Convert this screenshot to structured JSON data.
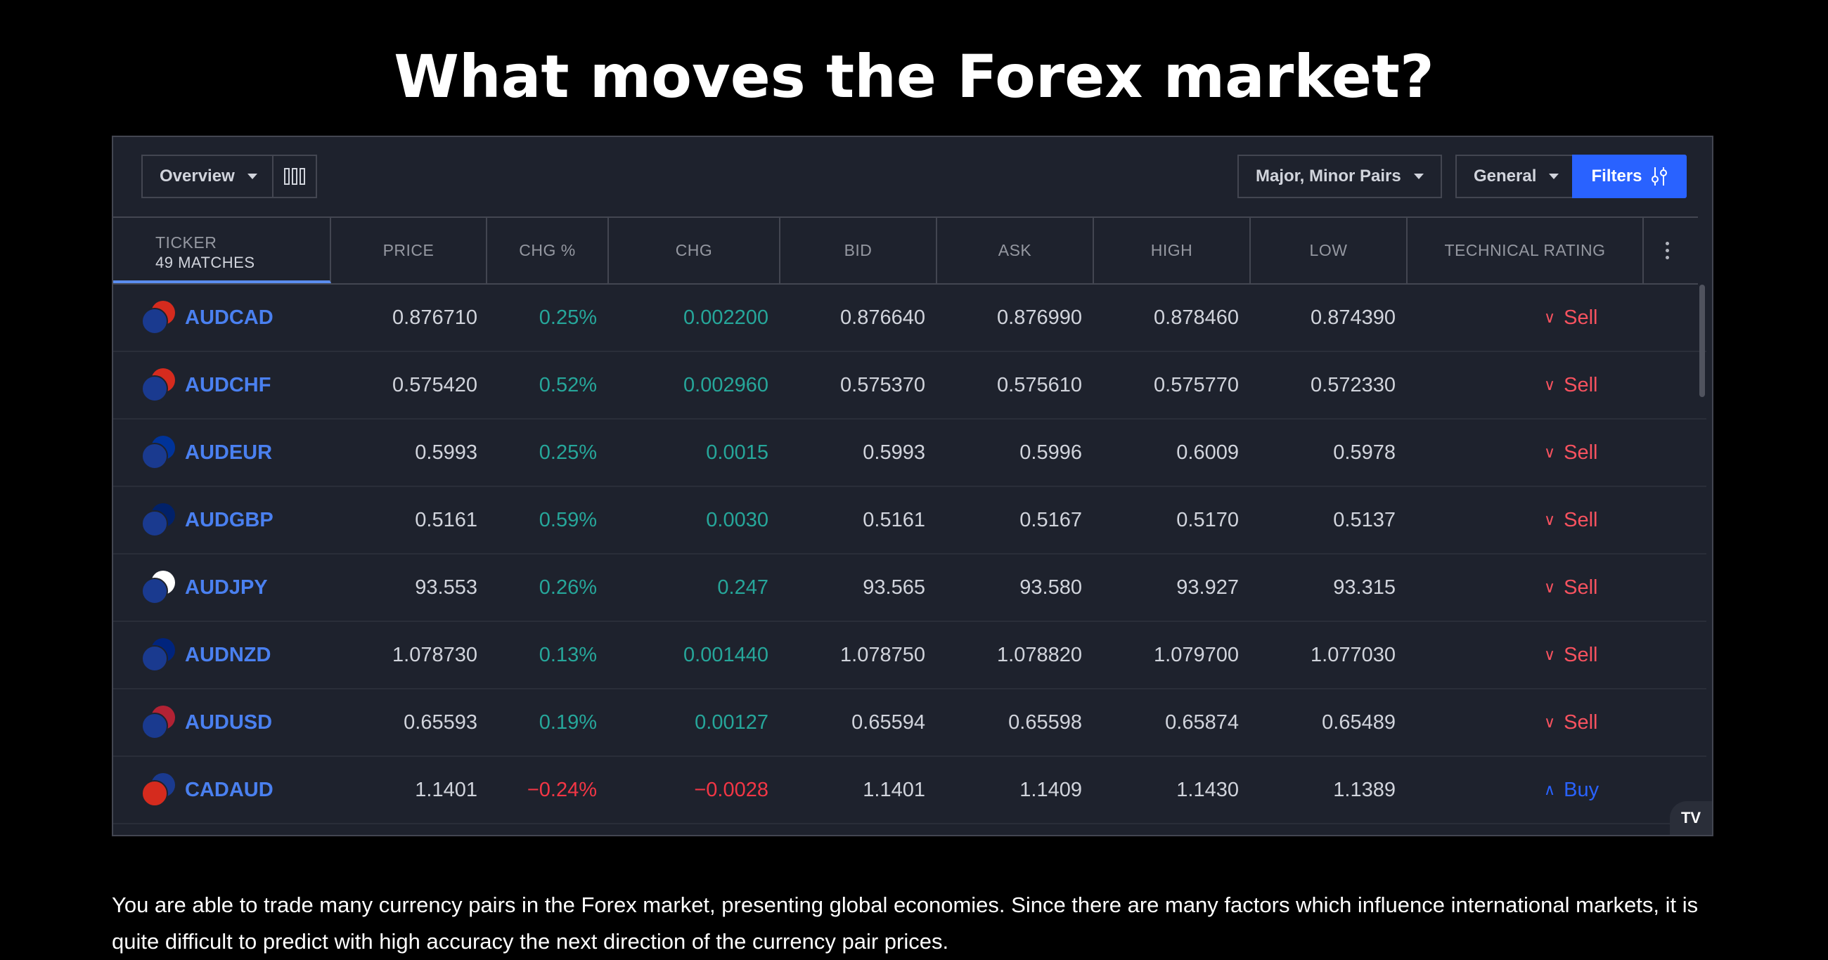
{
  "heading": "What moves the Forex market?",
  "toolbar": {
    "view_label": "Overview",
    "pairs_label": "Major, Minor Pairs",
    "general_label": "General",
    "filters_label": "Filters"
  },
  "columns": {
    "ticker": "TICKER",
    "matches": "49 MATCHES",
    "price": "PRICE",
    "chg_pct": "CHG %",
    "chg": "CHG",
    "bid": "BID",
    "ask": "ASK",
    "high": "HIGH",
    "low": "LOW",
    "rating": "TECHNICAL RATING"
  },
  "rows": [
    {
      "symbol": "AUDCAD",
      "price": "0.876710",
      "chg_pct": "0.25%",
      "chg": "0.002200",
      "bid": "0.876640",
      "ask": "0.876990",
      "high": "0.878460",
      "low": "0.874390",
      "rating": "Sell",
      "dir": "pos",
      "rating_dir": "sell",
      "flag1": "#1a3a8f",
      "flag2": "#d52b1e"
    },
    {
      "symbol": "AUDCHF",
      "price": "0.575420",
      "chg_pct": "0.52%",
      "chg": "0.002960",
      "bid": "0.575370",
      "ask": "0.575610",
      "high": "0.575770",
      "low": "0.572330",
      "rating": "Sell",
      "dir": "pos",
      "rating_dir": "sell",
      "flag1": "#1a3a8f",
      "flag2": "#d52b1e"
    },
    {
      "symbol": "AUDEUR",
      "price": "0.5993",
      "chg_pct": "0.25%",
      "chg": "0.0015",
      "bid": "0.5993",
      "ask": "0.5996",
      "high": "0.6009",
      "low": "0.5978",
      "rating": "Sell",
      "dir": "pos",
      "rating_dir": "sell",
      "flag1": "#1a3a8f",
      "flag2": "#003399"
    },
    {
      "symbol": "AUDGBP",
      "price": "0.5161",
      "chg_pct": "0.59%",
      "chg": "0.0030",
      "bid": "0.5161",
      "ask": "0.5167",
      "high": "0.5170",
      "low": "0.5137",
      "rating": "Sell",
      "dir": "pos",
      "rating_dir": "sell",
      "flag1": "#1a3a8f",
      "flag2": "#012169"
    },
    {
      "symbol": "AUDJPY",
      "price": "93.553",
      "chg_pct": "0.26%",
      "chg": "0.247",
      "bid": "93.565",
      "ask": "93.580",
      "high": "93.927",
      "low": "93.315",
      "rating": "Sell",
      "dir": "pos",
      "rating_dir": "sell",
      "flag1": "#1a3a8f",
      "flag2": "#ffffff"
    },
    {
      "symbol": "AUDNZD",
      "price": "1.078730",
      "chg_pct": "0.13%",
      "chg": "0.001440",
      "bid": "1.078750",
      "ask": "1.078820",
      "high": "1.079700",
      "low": "1.077030",
      "rating": "Sell",
      "dir": "pos",
      "rating_dir": "sell",
      "flag1": "#1a3a8f",
      "flag2": "#00247d"
    },
    {
      "symbol": "AUDUSD",
      "price": "0.65593",
      "chg_pct": "0.19%",
      "chg": "0.00127",
      "bid": "0.65594",
      "ask": "0.65598",
      "high": "0.65874",
      "low": "0.65489",
      "rating": "Sell",
      "dir": "pos",
      "rating_dir": "sell",
      "flag1": "#1a3a8f",
      "flag2": "#b22234"
    },
    {
      "symbol": "CADAUD",
      "price": "1.1401",
      "chg_pct": "−0.24%",
      "chg": "−0.0028",
      "bid": "1.1401",
      "ask": "1.1409",
      "high": "1.1430",
      "low": "1.1389",
      "rating": "Buy",
      "dir": "neg",
      "rating_dir": "buy",
      "flag1": "#d52b1e",
      "flag2": "#1a3a8f"
    }
  ],
  "tv_logo": "TV",
  "paragraph": "You are able to trade many currency pairs in the Forex market, presenting global economies. Since there are many factors which influence international markets, it is quite difficult to predict with high accuracy the next direction of the currency pair prices.",
  "colors": {
    "background": "#000000",
    "panel": "#1e222d",
    "accent": "#2962ff",
    "positive": "#26a69a",
    "negative": "#f23645",
    "sell": "#f7525f",
    "symbol": "#4a80f0"
  }
}
